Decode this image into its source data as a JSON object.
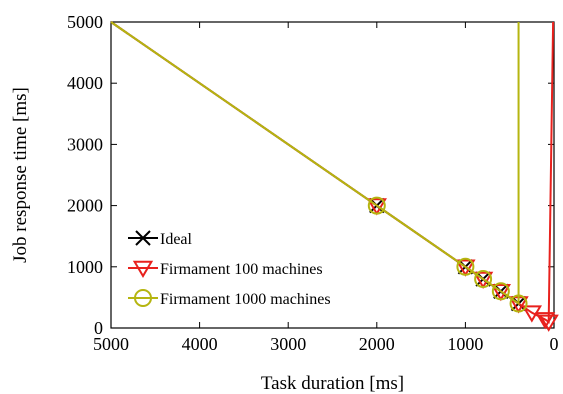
{
  "chart_data": {
    "type": "line",
    "xlabel": "Task duration [ms]",
    "ylabel": "Job response time [ms]",
    "xlim": [
      5000,
      0
    ],
    "ylim": [
      0,
      5000
    ],
    "x_reversed": true,
    "x_ticks": [
      5000,
      4000,
      3000,
      2000,
      1000,
      0
    ],
    "x_tick_labels": [
      "5000",
      "4000",
      "3000",
      "2000",
      "1000",
      "0"
    ],
    "y_ticks": [
      0,
      1000,
      2000,
      3000,
      4000,
      5000
    ],
    "y_tick_labels": [
      "0",
      "1000",
      "2000",
      "3000",
      "4000",
      "5000"
    ],
    "grid": false,
    "legend_position": "bottom-left",
    "series": [
      {
        "name": "Ideal",
        "color": "#000000",
        "marker": "x",
        "points": [
          [
            5000,
            5000
          ],
          [
            2000,
            2000
          ],
          [
            1000,
            1000
          ],
          [
            800,
            800
          ],
          [
            600,
            600
          ],
          [
            400,
            400
          ]
        ]
      },
      {
        "name": "Firmament 100 machines",
        "color": "#e8211d",
        "marker": "triangle-down",
        "points": [
          [
            5000,
            5000
          ],
          [
            2000,
            2000
          ],
          [
            1000,
            1000
          ],
          [
            800,
            800
          ],
          [
            600,
            600
          ],
          [
            400,
            400
          ],
          [
            250,
            250
          ],
          [
            100,
            140
          ],
          [
            60,
            100
          ],
          [
            10,
            5000
          ]
        ]
      },
      {
        "name": "Firmament 1000 machines",
        "color": "#b5b510",
        "marker": "circle",
        "points": [
          [
            5000,
            5000
          ],
          [
            2000,
            2000
          ],
          [
            1000,
            1000
          ],
          [
            800,
            800
          ],
          [
            600,
            600
          ],
          [
            400,
            400
          ],
          [
            400,
            5000
          ]
        ]
      }
    ]
  }
}
